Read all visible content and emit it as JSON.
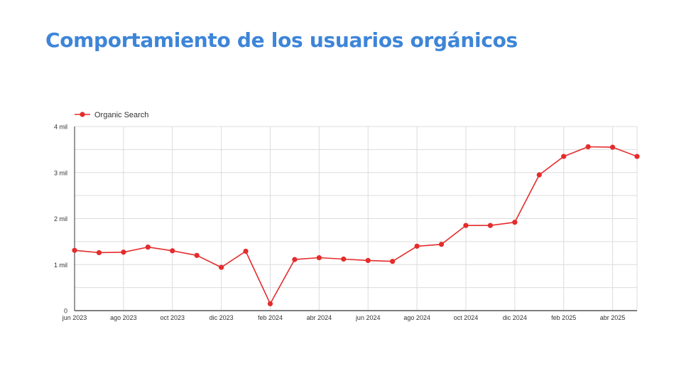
{
  "slide": {
    "title": "Comportamiento de los usuarios orgánicos"
  },
  "colors": {
    "title": "#3d85d8",
    "series": "#e52b2b",
    "grid": "#dcdcdc",
    "axis": "#333333"
  },
  "chart_data": {
    "type": "line",
    "title": "",
    "xlabel": "",
    "ylabel": "",
    "x": [
      "jun 2023",
      "jul 2023",
      "ago 2023",
      "sep 2023",
      "oct 2023",
      "nov 2023",
      "dic 2023",
      "ene 2024",
      "feb 2024",
      "mar 2024",
      "abr 2024",
      "may 2024",
      "jun 2024",
      "jul 2024",
      "ago 2024",
      "sep 2024",
      "oct 2024",
      "nov 2024",
      "dic 2024",
      "ene 2025",
      "feb 2025",
      "mar 2025",
      "abr 2025",
      "may 2025"
    ],
    "x_tick_labels": [
      "jun 2023",
      "ago 2023",
      "oct 2023",
      "dic 2023",
      "feb 2024",
      "abr 2024",
      "jun 2024",
      "ago 2024",
      "oct 2024",
      "dic 2024",
      "feb 2025",
      "abr 2025"
    ],
    "series": [
      {
        "name": "Organic Search",
        "values": [
          1310,
          1260,
          1270,
          1380,
          1300,
          1200,
          940,
          1290,
          150,
          1110,
          1150,
          1120,
          1090,
          1070,
          1400,
          1440,
          1850,
          1850,
          1920,
          2950,
          3350,
          3560,
          3550,
          3350
        ]
      }
    ],
    "ylim": [
      0,
      4000
    ],
    "y_ticks": [
      0,
      1000,
      2000,
      3000,
      4000
    ],
    "y_tick_labels": [
      "0",
      "1 mil",
      "2 mil",
      "3 mil",
      "4 mil"
    ],
    "grid": true,
    "legend_position": "top-left"
  }
}
